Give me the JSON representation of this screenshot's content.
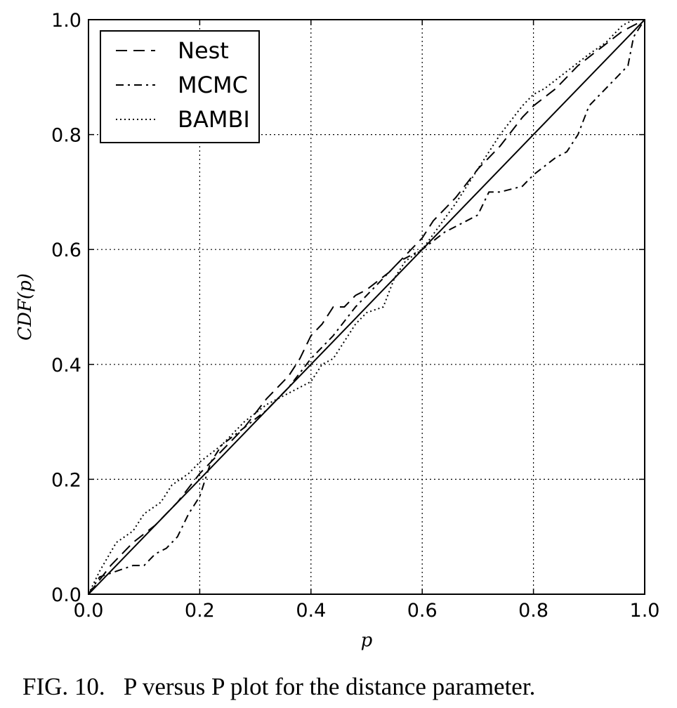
{
  "caption": "FIG. 10.   P versus P plot for the distance parameter.",
  "chart_data": {
    "type": "line",
    "xlabel": "p",
    "ylabel": "CDF(p)",
    "xlim": [
      0.0,
      1.0
    ],
    "ylim": [
      0.0,
      1.0
    ],
    "xticks": [
      "0.0",
      "0.2",
      "0.4",
      "0.6",
      "0.8",
      "1.0"
    ],
    "yticks": [
      "0.0",
      "0.2",
      "0.4",
      "0.6",
      "0.8",
      "1.0"
    ],
    "grid": true,
    "legend_position": "top-left",
    "diagonal": {
      "x": [
        0.0,
        1.0
      ],
      "y": [
        0.0,
        1.0
      ]
    },
    "series": [
      {
        "name": "Nest",
        "style": "dashed",
        "x": [
          0.0,
          0.04,
          0.08,
          0.12,
          0.16,
          0.2,
          0.22,
          0.24,
          0.28,
          0.32,
          0.36,
          0.38,
          0.4,
          0.42,
          0.44,
          0.46,
          0.48,
          0.5,
          0.54,
          0.58,
          0.6,
          0.62,
          0.66,
          0.7,
          0.74,
          0.78,
          0.8,
          0.84,
          0.88,
          0.92,
          0.96,
          1.0
        ],
        "y": [
          0.0,
          0.05,
          0.09,
          0.12,
          0.16,
          0.21,
          0.23,
          0.25,
          0.29,
          0.34,
          0.38,
          0.41,
          0.45,
          0.47,
          0.5,
          0.5,
          0.52,
          0.53,
          0.56,
          0.6,
          0.62,
          0.65,
          0.69,
          0.74,
          0.78,
          0.83,
          0.85,
          0.88,
          0.92,
          0.95,
          0.98,
          1.0
        ]
      },
      {
        "name": "MCMC",
        "style": "dashdot",
        "x": [
          0.0,
          0.02,
          0.05,
          0.08,
          0.1,
          0.12,
          0.14,
          0.16,
          0.18,
          0.2,
          0.22,
          0.24,
          0.28,
          0.32,
          0.36,
          0.4,
          0.44,
          0.48,
          0.52,
          0.56,
          0.6,
          0.64,
          0.68,
          0.7,
          0.72,
          0.74,
          0.78,
          0.8,
          0.84,
          0.86,
          0.88,
          0.9,
          0.92,
          0.95,
          0.97,
          0.98,
          1.0
        ],
        "y": [
          0.0,
          0.03,
          0.04,
          0.05,
          0.05,
          0.07,
          0.08,
          0.1,
          0.14,
          0.17,
          0.23,
          0.26,
          0.29,
          0.32,
          0.36,
          0.41,
          0.45,
          0.5,
          0.54,
          0.58,
          0.6,
          0.63,
          0.65,
          0.66,
          0.7,
          0.7,
          0.71,
          0.73,
          0.76,
          0.77,
          0.8,
          0.85,
          0.87,
          0.9,
          0.92,
          0.97,
          1.0
        ]
      },
      {
        "name": "BAMBI",
        "style": "dotted",
        "x": [
          0.0,
          0.02,
          0.05,
          0.08,
          0.1,
          0.13,
          0.15,
          0.18,
          0.2,
          0.24,
          0.28,
          0.32,
          0.36,
          0.4,
          0.42,
          0.44,
          0.46,
          0.48,
          0.5,
          0.53,
          0.55,
          0.57,
          0.6,
          0.63,
          0.66,
          0.7,
          0.74,
          0.78,
          0.8,
          0.82,
          0.86,
          0.9,
          0.93,
          0.96,
          0.98,
          1.0
        ],
        "y": [
          0.0,
          0.04,
          0.09,
          0.11,
          0.14,
          0.16,
          0.19,
          0.21,
          0.23,
          0.26,
          0.3,
          0.33,
          0.35,
          0.37,
          0.4,
          0.41,
          0.44,
          0.47,
          0.49,
          0.5,
          0.55,
          0.58,
          0.6,
          0.64,
          0.68,
          0.74,
          0.8,
          0.85,
          0.87,
          0.88,
          0.91,
          0.94,
          0.96,
          0.99,
          1.0,
          1.0
        ]
      }
    ]
  }
}
